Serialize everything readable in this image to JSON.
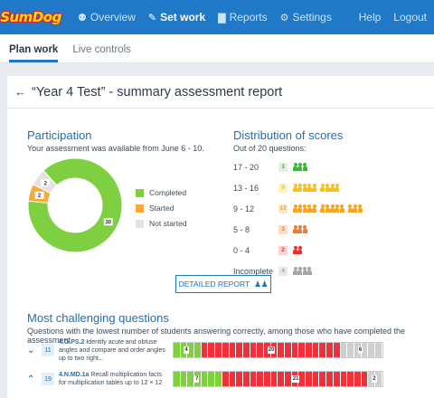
{
  "app": {
    "logo_text": "SumDog"
  },
  "nav": {
    "items": [
      {
        "label": "Overview",
        "icon": "binoculars-icon"
      },
      {
        "label": "Set work",
        "icon": "pencil-icon"
      },
      {
        "label": "Reports",
        "icon": "chart-icon"
      },
      {
        "label": "Settings",
        "icon": "gears-icon"
      }
    ],
    "help": "Help",
    "logout": "Logout"
  },
  "subnav": {
    "tabs": [
      "Plan work",
      "Live controls"
    ]
  },
  "report": {
    "title": "“Year 4 Test” - summary assessment report"
  },
  "participation": {
    "title": "Participation",
    "subtitle": "Your assessment was available from June 6 - 10.",
    "slices": [
      {
        "label": "Completed",
        "value": 30,
        "color": "#7ed040"
      },
      {
        "label": "Started",
        "value": 2,
        "color": "#f8a93c"
      },
      {
        "label": "Not started",
        "value": 2,
        "color": "#e3e3e3"
      }
    ]
  },
  "distribution": {
    "title": "Distribution of scores",
    "subtitle": "Out of 20 questions:",
    "rows": [
      {
        "range": "17 - 20",
        "count": 3,
        "color": "#3eb43e",
        "badge_bg": "#dff2da"
      },
      {
        "range": "13 - 16",
        "count": 9,
        "color": "#f5c21b",
        "badge_bg": "#fcf0c8"
      },
      {
        "range": "9 - 12",
        "count": 13,
        "color": "#f5a623",
        "badge_bg": "#fde6c4"
      },
      {
        "range": "5 - 8",
        "count": 3,
        "color": "#f07a2a",
        "badge_bg": "#fcdcc7"
      },
      {
        "range": "0 - 4",
        "count": 2,
        "color": "#e8332c",
        "badge_bg": "#f9d2d0"
      },
      {
        "range": "Incomplete",
        "count": 4,
        "color": "#a6a6a6",
        "badge_bg": "#e8e8e8"
      }
    ]
  },
  "detailed_button": {
    "label": "DETAILED REPORT"
  },
  "challenging": {
    "title": "Most challenging questions",
    "subtitle": "Questions with the lowest number of students answering correctly, among those who have completed the assessment",
    "questions": [
      {
        "chevron": "⌄",
        "number": "11",
        "code": "4.G.PS.2",
        "text": " Identify acute and obtuse angles and compare and order angles up to two right...",
        "segments": {
          "correct": 4,
          "incorrect": 20,
          "incomplete": 6
        }
      },
      {
        "chevron": "⌃",
        "number": "19",
        "code": "4.N.MD.1a",
        "text": " Recall multiplication facts for multiplication tables up to 12 × 12",
        "segments": {
          "correct": 7,
          "incorrect": 21,
          "incomplete": 2
        }
      }
    ]
  },
  "colors": {
    "correct": "#7ed040",
    "incorrect": "#f0303a",
    "incomplete": "#cfcfcf"
  }
}
